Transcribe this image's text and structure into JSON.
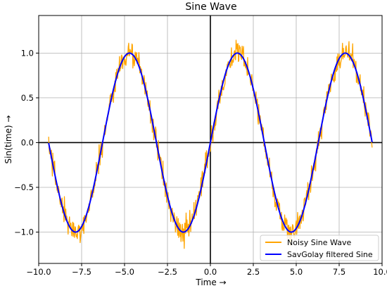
{
  "chart_data": {
    "type": "line",
    "title": "Sine Wave",
    "xlabel": "Time →",
    "ylabel": "Sin(time)  →",
    "xlim": [
      -10.0,
      10.0
    ],
    "ylim": [
      -1.35,
      1.42
    ],
    "x_ticks": [
      -10.0,
      -7.5,
      -5.0,
      -2.5,
      0.0,
      2.5,
      5.0,
      7.5,
      10.0
    ],
    "x_tick_labels": [
      "−10.0",
      "−7.5",
      "−5.0",
      "−2.5",
      "0.0",
      "2.5",
      "5.0",
      "7.5",
      "10.0"
    ],
    "y_ticks": [
      -1.0,
      -0.5,
      0.0,
      0.5,
      1.0
    ],
    "y_tick_labels": [
      "−1.0",
      "−0.5",
      "0.0",
      "0.5",
      "1.0"
    ],
    "grid": true,
    "zero_lines": true,
    "legend_position": "lower-right",
    "function": "sin(x)",
    "x_start": -9.42,
    "x_end": 9.42,
    "series": [
      {
        "name": "Noisy Sine Wave",
        "color": "#ffa500",
        "noise_amplitude": 0.22
      },
      {
        "name": "SavGolay filtered Sine",
        "color": "#0000ff",
        "smoothed": true
      }
    ]
  }
}
